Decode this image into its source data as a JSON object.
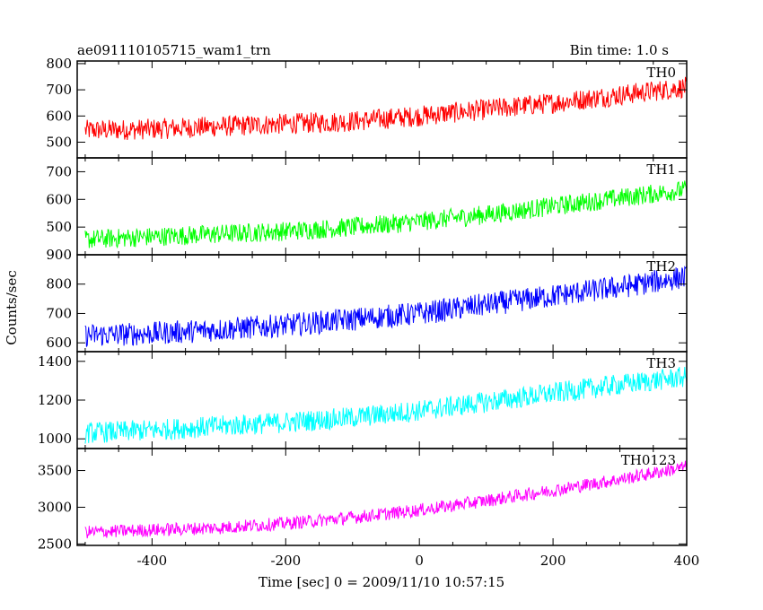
{
  "chart_data": {
    "type": "line",
    "title": "ae091110105715_wam1_trn",
    "bin_time_label": "Bin time: 1.0 s",
    "xlabel": "Time [sec] 0 = 2009/11/10 10:57:15",
    "ylabel": "Counts/sec",
    "xlim": [
      -512,
      400
    ],
    "x_ticks": [
      -400,
      -200,
      0,
      200,
      400
    ],
    "panels": [
      {
        "name": "TH0",
        "color": "#ff0000",
        "ylim": [
          440,
          810
        ],
        "y_ticks": [
          500,
          600,
          700,
          800
        ],
        "x": [
          -500,
          -400,
          -300,
          -200,
          -100,
          0,
          100,
          200,
          300,
          400
        ],
        "values": [
          545,
          550,
          560,
          570,
          580,
          600,
          625,
          650,
          680,
          710
        ],
        "noise": 40
      },
      {
        "name": "TH1",
        "color": "#00ff00",
        "ylim": [
          400,
          750
        ],
        "y_ticks": [
          500,
          600,
          700
        ],
        "x": [
          -500,
          -400,
          -300,
          -200,
          -100,
          0,
          100,
          200,
          300,
          400
        ],
        "values": [
          455,
          465,
          475,
          485,
          500,
          520,
          545,
          575,
          605,
          635
        ],
        "noise": 35
      },
      {
        "name": "TH2",
        "color": "#0000ff",
        "ylim": [
          570,
          900
        ],
        "y_ticks": [
          600,
          700,
          800,
          900
        ],
        "x": [
          -500,
          -400,
          -300,
          -200,
          -100,
          0,
          100,
          200,
          300,
          400
        ],
        "values": [
          625,
          632,
          645,
          660,
          680,
          700,
          730,
          760,
          790,
          825
        ],
        "noise": 40
      },
      {
        "name": "TH3",
        "color": "#00ffff",
        "ylim": [
          950,
          1450
        ],
        "y_ticks": [
          1000,
          1200,
          1400
        ],
        "x": [
          -500,
          -400,
          -300,
          -200,
          -100,
          0,
          100,
          200,
          300,
          400
        ],
        "values": [
          1030,
          1045,
          1065,
          1085,
          1110,
          1145,
          1190,
          1235,
          1280,
          1320
        ],
        "noise": 55
      },
      {
        "name": "TH0123",
        "color": "#ff00ff",
        "ylim": [
          2480,
          3800
        ],
        "y_ticks": [
          2500,
          3000,
          3500
        ],
        "x": [
          -500,
          -400,
          -300,
          -200,
          -100,
          0,
          100,
          200,
          300,
          400
        ],
        "values": [
          2660,
          2690,
          2720,
          2780,
          2860,
          2960,
          3090,
          3230,
          3380,
          3550
        ],
        "noise": 90
      }
    ],
    "grid": false,
    "legend": "none"
  }
}
